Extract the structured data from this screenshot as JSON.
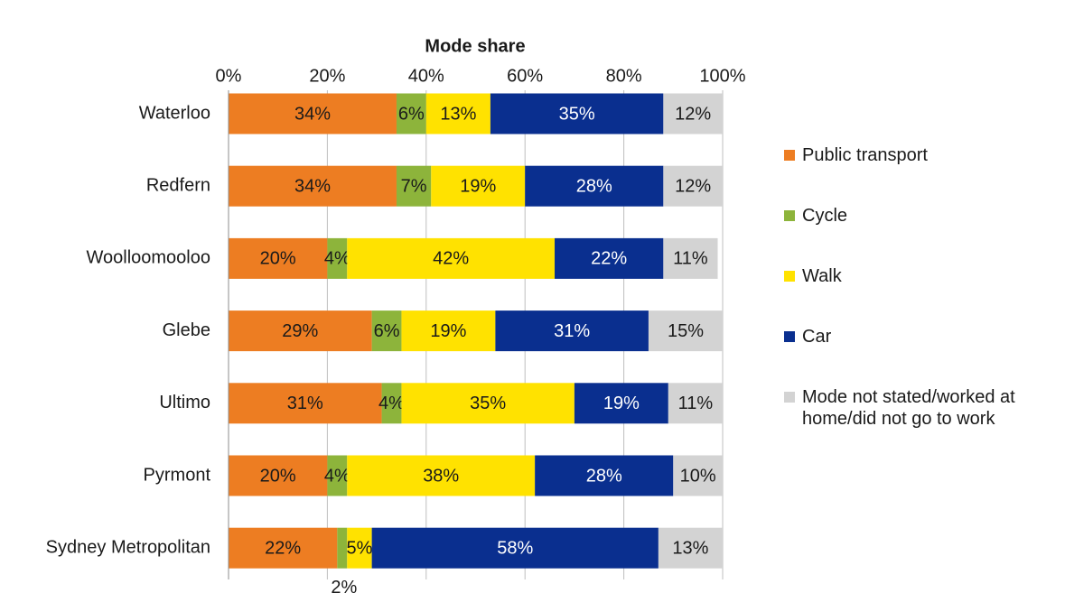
{
  "chart_data": {
    "type": "stacked-bar-horizontal",
    "title": "Mode share",
    "categories": [
      "Waterloo",
      "Redfern",
      "Woolloomooloo",
      "Glebe",
      "Ultimo",
      "Pyrmont",
      "Sydney Metropolitan"
    ],
    "series": [
      {
        "name": "Public transport",
        "color": "#ED7D22",
        "values": [
          34,
          34,
          20,
          29,
          31,
          20,
          22
        ],
        "value_labels": [
          "34%",
          "34%",
          "20%",
          "29%",
          "31%",
          "20%",
          "22%"
        ]
      },
      {
        "name": "Cycle",
        "color": "#8DB43B",
        "values": [
          6,
          7,
          4,
          6,
          4,
          4,
          2
        ],
        "value_labels": [
          "6%",
          "7%",
          "4%",
          "6%",
          "4%",
          "4%",
          "2%"
        ]
      },
      {
        "name": "Walk",
        "color": "#FFE200",
        "values": [
          13,
          19,
          42,
          19,
          35,
          38,
          5
        ],
        "value_labels": [
          "13%",
          "19%",
          "42%",
          "19%",
          "35%",
          "38%",
          "5%"
        ]
      },
      {
        "name": "Car",
        "color": "#0A2F8F",
        "values": [
          35,
          28,
          22,
          31,
          19,
          28,
          58
        ],
        "value_labels": [
          "35%",
          "28%",
          "22%",
          "31%",
          "19%",
          "28%",
          "58%"
        ]
      },
      {
        "name": "Mode not stated/worked at home/did not go to work",
        "color": "#D3D3D3",
        "values": [
          12,
          12,
          11,
          15,
          11,
          10,
          13
        ],
        "value_labels": [
          "12%",
          "12%",
          "11%",
          "15%",
          "11%",
          "10%",
          "13%"
        ]
      }
    ],
    "xlim": [
      0,
      100
    ],
    "xticks": [
      {
        "value": 0,
        "label": "0%"
      },
      {
        "value": 20,
        "label": "20%"
      },
      {
        "value": 40,
        "label": "40%"
      },
      {
        "value": 60,
        "label": "60%"
      },
      {
        "value": 80,
        "label": "80%"
      },
      {
        "value": 100,
        "label": "100%"
      }
    ],
    "grid": true,
    "legend": "right"
  }
}
